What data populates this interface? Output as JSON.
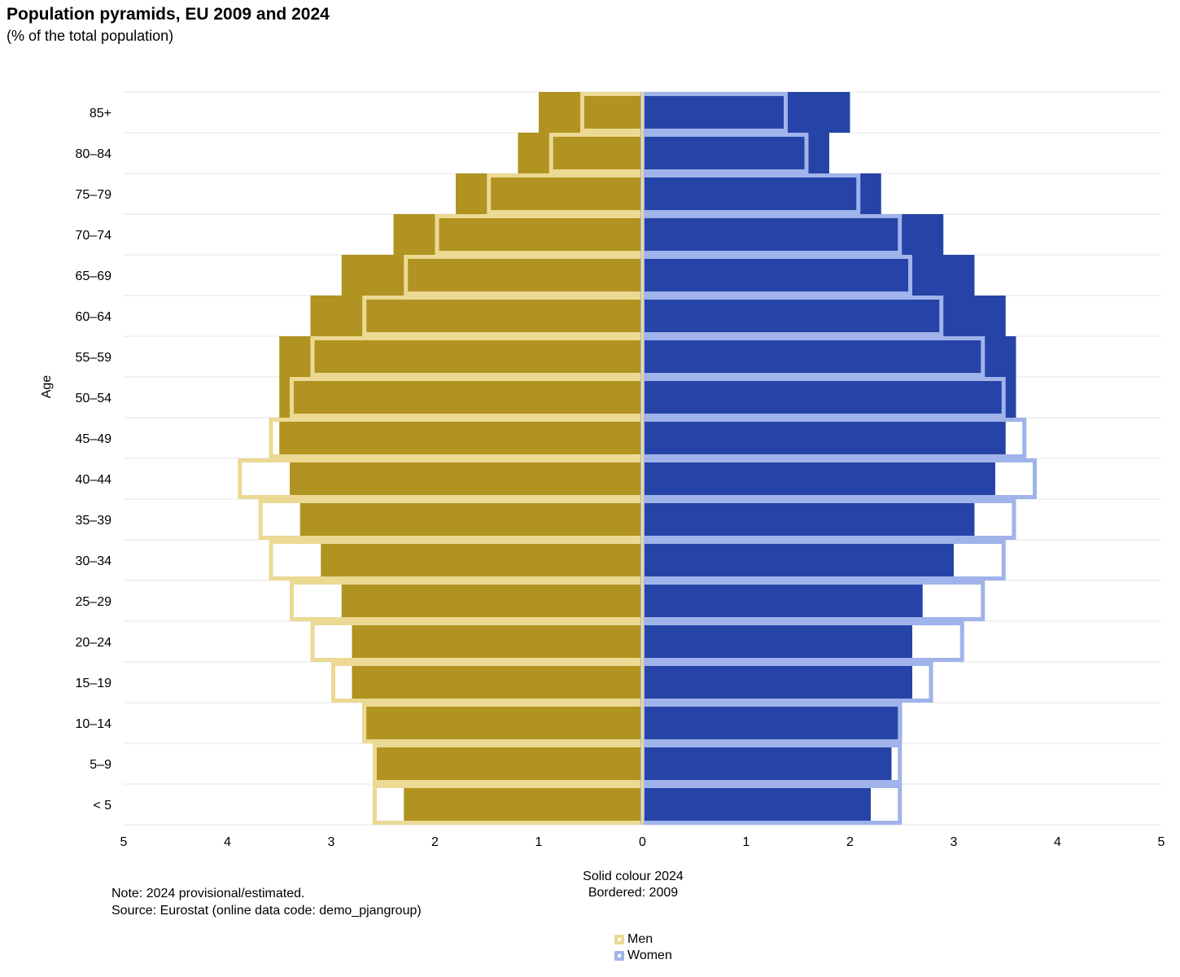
{
  "title": "Population pyramids, EU 2009 and 2024",
  "subtitle": "(% of the total population)",
  "notes": {
    "line1": "Note: 2024 provisional/estimated.",
    "line2": "Source: Eurostat (online data code: demo_pjangroup)"
  },
  "colors": {
    "men_solid": "#B09320",
    "men_border": "#EBD994",
    "women_solid": "#2644A7",
    "women_border": "#A0B3EA",
    "grid": "#e6e6e6"
  },
  "legend": [
    {
      "label": "Men",
      "color": "#EBD994"
    },
    {
      "label": "Women",
      "color": "#A0B3EA"
    }
  ],
  "chart_data": {
    "type": "bar",
    "orientation": "horizontal-pyramid",
    "title": "Population pyramids, EU 2009 and 2024",
    "subtitle": "(% of the total population)",
    "ylabel": "Age",
    "xlabel": "Solid colour 2024\nBordered: 2009",
    "xlabel_lines": [
      "Solid colour 2024",
      "Bordered: 2009"
    ],
    "xlim": [
      -5,
      5
    ],
    "xticks": [
      -5,
      -4,
      -3,
      -2,
      -1,
      0,
      1,
      2,
      3,
      4,
      5
    ],
    "xtick_labels": [
      "5",
      "4",
      "3",
      "2",
      "1",
      "0",
      "1",
      "2",
      "3",
      "4",
      "5"
    ],
    "categories": [
      "85+",
      "80–84",
      "75–79",
      "70–74",
      "65–69",
      "60–64",
      "55–59",
      "50–54",
      "45–49",
      "40–44",
      "35–39",
      "30–34",
      "25–29",
      "20–24",
      "15–19",
      "10–14",
      "5–9",
      "< 5"
    ],
    "series": [
      {
        "name": "Men 2024",
        "style": "solid",
        "side": "left",
        "values": [
          1.0,
          1.2,
          1.8,
          2.4,
          2.9,
          3.2,
          3.5,
          3.5,
          3.5,
          3.4,
          3.3,
          3.1,
          2.9,
          2.8,
          2.8,
          2.7,
          2.6,
          2.3
        ]
      },
      {
        "name": "Women 2024",
        "style": "solid",
        "side": "right",
        "values": [
          2.0,
          1.8,
          2.3,
          2.9,
          3.2,
          3.5,
          3.6,
          3.6,
          3.5,
          3.4,
          3.2,
          3.0,
          2.7,
          2.6,
          2.6,
          2.5,
          2.4,
          2.2
        ]
      },
      {
        "name": "Men 2009",
        "style": "bordered",
        "side": "left",
        "values": [
          0.6,
          0.9,
          1.5,
          2.0,
          2.3,
          2.7,
          3.2,
          3.4,
          3.6,
          3.9,
          3.7,
          3.6,
          3.4,
          3.2,
          3.0,
          2.7,
          2.6,
          2.6
        ]
      },
      {
        "name": "Women 2009",
        "style": "bordered",
        "side": "right",
        "values": [
          1.4,
          1.6,
          2.1,
          2.5,
          2.6,
          2.9,
          3.3,
          3.5,
          3.7,
          3.8,
          3.6,
          3.5,
          3.3,
          3.1,
          2.8,
          2.5,
          2.5,
          2.5
        ]
      }
    ],
    "legend": [
      "Men",
      "Women"
    ],
    "legend_position": "bottom-center"
  }
}
